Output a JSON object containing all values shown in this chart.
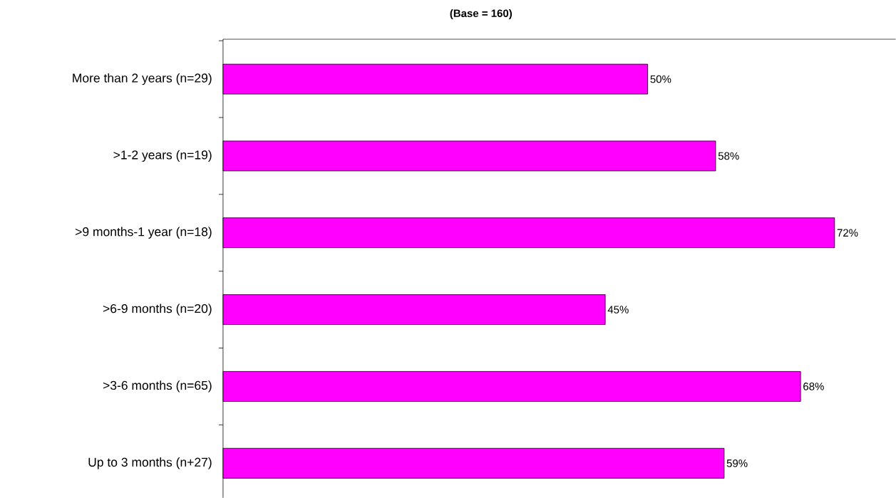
{
  "chart_data": {
    "type": "bar",
    "orientation": "horizontal",
    "title": "(Base = 160)",
    "categories": [
      "More than 2 years (n=29)",
      ">1-2 years (n=19)",
      ">9 months-1 year (n=18)",
      ">6-9 months (n=20)",
      ">3-6 months (n=65)",
      "Up to 3  months (n+27)"
    ],
    "values": [
      50,
      58,
      72,
      45,
      68,
      59
    ],
    "value_labels": [
      "50%",
      "58%",
      "72%",
      "45%",
      "68%",
      "59%"
    ],
    "color": "#ff00ff"
  }
}
